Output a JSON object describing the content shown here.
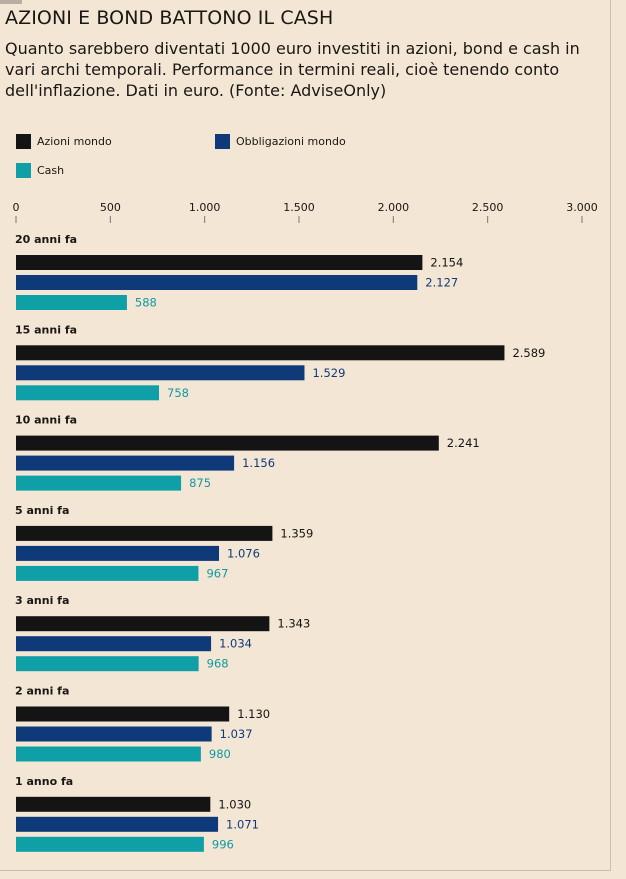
{
  "header": {
    "title": "AZIONI E BOND BATTONO IL CASH",
    "subtitle": "Quanto sarebbero diventati 1000 euro investiti in azioni, bond e cash in vari archi temporali. Performance in termini reali, cioè tenendo conto dell'inflazione. Dati in euro. (Fonte: AdviseOnly)"
  },
  "chart_data": {
    "type": "bar",
    "orientation": "horizontal",
    "title": "AZIONI E BOND BATTONO IL CASH",
    "xlim": [
      0,
      3000
    ],
    "x_ticks": [
      0,
      500,
      1000,
      1500,
      2000,
      2500,
      3000
    ],
    "x_tick_labels": [
      "0",
      "500",
      "1.000",
      "1.500",
      "2.000",
      "2.500",
      "3.000"
    ],
    "grid": false,
    "legend_position": "top-left",
    "categories": [
      "20 anni fa",
      "15 anni fa",
      "10 anni fa",
      "5 anni fa",
      "3 anni fa",
      "2 anni fa",
      "1 anno fa"
    ],
    "series": [
      {
        "name": "Azioni mondo",
        "color": "#151414",
        "label_color": "#151414",
        "values": [
          2154,
          2589,
          2241,
          1359,
          1343,
          1130,
          1030
        ],
        "labels": [
          "2.154",
          "2.589",
          "2.241",
          "1.359",
          "1.343",
          "1.130",
          "1.030"
        ]
      },
      {
        "name": "Obbligazioni mondo",
        "color": "#0f3a7a",
        "label_color": "#0f3a7a",
        "values": [
          2127,
          1529,
          1156,
          1076,
          1034,
          1037,
          1071
        ],
        "labels": [
          "2.127",
          "1.529",
          "1.156",
          "1.076",
          "1.034",
          "1.037",
          "1.071"
        ]
      },
      {
        "name": "Cash",
        "color": "#0fa0a7",
        "label_color": "#0e9aa1",
        "values": [
          588,
          758,
          875,
          967,
          968,
          980,
          996
        ],
        "labels": [
          "588",
          "758",
          "875",
          "967",
          "968",
          "980",
          "996"
        ]
      }
    ]
  }
}
